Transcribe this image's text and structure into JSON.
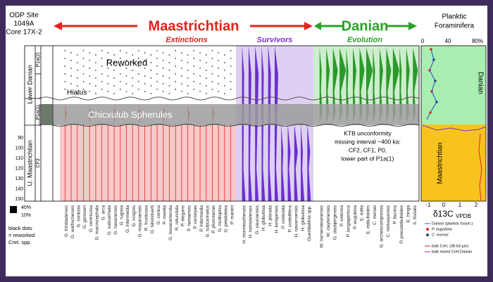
{
  "header": {
    "site": [
      "ODP Site",
      "1049A",
      "Core 17X-2"
    ],
    "maastrichtian": "Maastrichtian",
    "extinctions": "Extinctions",
    "survivors": "Survivors",
    "danian": "Danian",
    "evolution": "Evolution",
    "plot_title": [
      "Planktic",
      "Foraminifera"
    ]
  },
  "stages": {
    "u_maastrichtian": "U. Maastrichtian",
    "lower_danian": "Lower Danian",
    "zones": [
      "P1a(2)",
      "P1a(1)",
      "CF3"
    ]
  },
  "depth_ticks": [
    "90",
    "100",
    "110",
    "120",
    "130",
    "140",
    "150"
  ],
  "annotations": {
    "reworked": "Reworked",
    "hiatus": "Hiatus",
    "spherules": "Chicxulub Spherules",
    "unconformity": [
      "KTB unconformity",
      "missing interval ~400 ka:",
      "CF2, CF1, P0,",
      "lower part of P1a(1)"
    ]
  },
  "species": {
    "extinctions": [
      "G. trinidadensis",
      "G. walfischensis",
      "G. contusa",
      "G. gansseri",
      "G. ventricosa",
      "G. macrocephala",
      "G. arca",
      "G. subcarinata",
      "G. havanensis",
      "G. rugosa",
      "G. intermedia",
      "G. insignis",
      "G. mayaroensis",
      "R. fructicosa",
      "G. falsostuarti",
      "G. conica",
      "P. rosetta",
      "G. hexacamerata",
      "R. rotundata",
      "P. elegans",
      "P. hariaensis",
      "P. carseyae",
      "P. intermedia",
      "G. subcarinatus",
      "P. plummerae",
      "G. multispina",
      "G. petaloidea",
      "P. marieri"
    ],
    "survivors": [
      "H. monmouthensis",
      "H. holmdelensis",
      "G. yaucoensis",
      "H. globulosa",
      "H. planata",
      "H. kempensis",
      "P. costulata",
      "P. costellifera",
      "H. navarroensis",
      "H. globulosa",
      "Guembelitria spp."
    ],
    "danian": [
      "W. hornerstownensis",
      "W. claytonensis",
      "G. daubjergensis",
      "P. extensa",
      "P. longiapertura",
      "P. eugubina",
      "E. edita",
      "E. eobulloides",
      "C. morsei",
      "G. archeocompressa",
      "C. midwayensis",
      "P. taurica",
      "P. pseudobulloides",
      "E. fringa",
      "S. trivialis"
    ]
  },
  "plot": {
    "top_ticks": [
      "0",
      "40",
      "80%"
    ],
    "bottom_ticks": [
      "-1",
      "0",
      "1",
      "2"
    ],
    "danian": "Danian",
    "maastrichtian": "Maastrichtian",
    "axis_label": "δ13C",
    "axis_unit": "VPDB"
  },
  "legend": {
    "scale": [
      "40%",
      "10%"
    ],
    "dots": [
      "black dots",
      "= reworked",
      "Cret. spp."
    ],
    "items": [
      "Danian (planktic foram.)",
      "P. eugubina",
      "C. morsei",
      "bulk Cret. (38-63 µm)",
      "bulk mixed Cret-Danian"
    ]
  }
}
